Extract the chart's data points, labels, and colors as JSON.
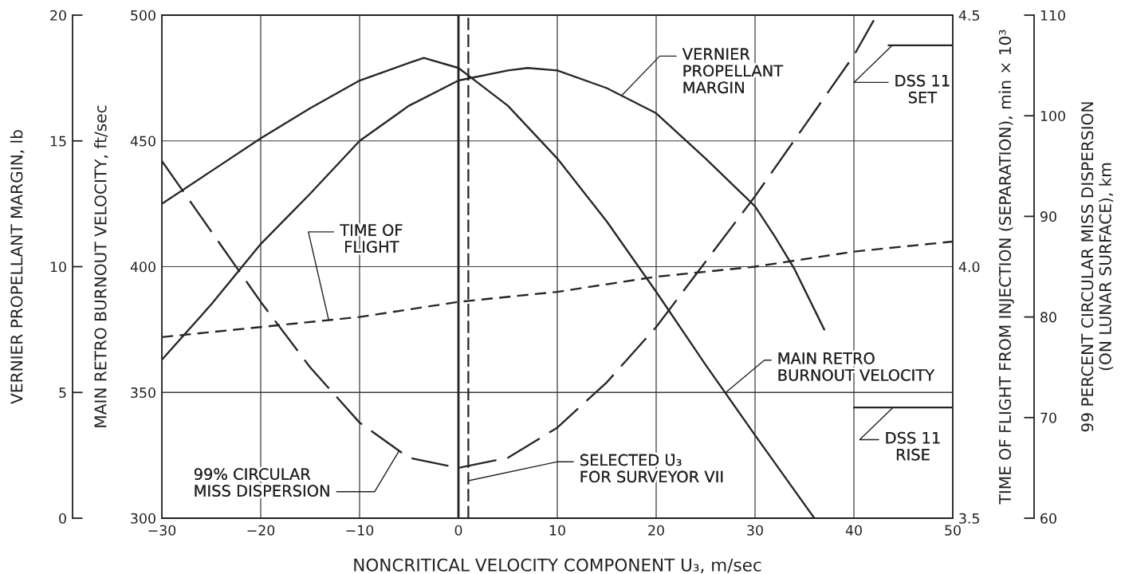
{
  "chart_data": [
    {
      "type": "line",
      "xlabel": "NONCRITICAL VELOCITY COMPONENT U₃, m/sec",
      "ylabel": "MAIN RETRO BURNOUT VELOCITY, ft/sec",
      "y2label": "TIME OF FLIGHT FROM INJECTION (SEPARATION), min × 10³",
      "y3label": "VERNIER PROPELLANT MARGIN, lb",
      "xlim": [
        -30,
        50
      ],
      "xticks": [
        -30,
        -20,
        -10,
        0,
        10,
        20,
        30,
        40,
        50
      ],
      "ylim": [
        300,
        500
      ],
      "yticks": [
        300,
        350,
        400,
        450,
        500
      ],
      "y2lim": [
        3.5,
        4.5
      ],
      "y2ticks": [
        3.5,
        {
          "value": 4,
          "label": "4.0"
        },
        4.5
      ],
      "y3lim": [
        0,
        20
      ],
      "y3ticks": [
        0,
        5,
        10,
        15,
        20
      ],
      "grid": true,
      "series": [
        {
          "name": "VERNIER\nPROPELLANT\nMARGIN",
          "axis": "y3",
          "color": "#262626",
          "line_style": "solid",
          "x": [
            -30,
            -25,
            -20,
            -15,
            -10,
            -5,
            0,
            5,
            7,
            10,
            15,
            20,
            25,
            30,
            32,
            34,
            36,
            37
          ],
          "values": [
            6.3,
            8.5,
            10.9,
            12.9,
            15.0,
            16.4,
            17.4,
            17.8,
            17.9,
            17.8,
            17.1,
            16.1,
            14.3,
            12.4,
            11.2,
            9.9,
            8.3,
            7.5
          ]
        },
        {
          "name": "MAIN RETRO\nBURNOUT VELOCITY",
          "color": "#262626",
          "line_style": "solid",
          "x": [
            -30,
            -25,
            -20,
            -15,
            -10,
            -5,
            -3.5,
            0,
            2,
            5,
            10,
            15,
            20,
            25,
            30,
            36
          ],
          "values": [
            425,
            438,
            451,
            463,
            474,
            481,
            483,
            479,
            473,
            464,
            443,
            418,
            390,
            361,
            333,
            300
          ]
        },
        {
          "name": "TIME OF\nFLIGHT",
          "axis": "y2",
          "color": "#262626",
          "line_style": "dashed",
          "x": [
            -30,
            -20,
            -10,
            0,
            10,
            20,
            30,
            40,
            50
          ],
          "values": [
            3.86,
            3.88,
            3.9,
            3.93,
            3.95,
            3.98,
            4.0,
            4.03,
            4.05
          ]
        },
        {
          "name": "DSS 11\nSET",
          "axis": "y2",
          "color": "#262626",
          "line_style": "solid",
          "x": [
            43.5,
            50
          ],
          "values": [
            4.44,
            4.44
          ]
        },
        {
          "name": "DSS 11\nRISE",
          "axis": "y2",
          "color": "#262626",
          "line_style": "solid",
          "x": [
            40,
            50
          ],
          "values": [
            3.72,
            3.72
          ]
        }
      ],
      "ref_lines": [
        {
          "axis": "x",
          "value": 0,
          "line_style": "solid",
          "color": "#222222"
        },
        {
          "axis": "x",
          "value": 1,
          "line_style": "dashed",
          "color": "#222222",
          "label": "SELECTED U̇₃\nFOR SURVEYOR VII"
        }
      ]
    },
    {
      "type": "line",
      "ylabel": "99 PERCENT CIRCULAR MISS DISPERSION\n(ON LUNAR SURFACE), km",
      "xlim": [
        -30,
        50
      ],
      "ylim": [
        60,
        110
      ],
      "yticks": [
        60,
        70,
        80,
        90,
        100,
        110
      ],
      "tick_labels": "y",
      "series": [
        {
          "name": "99% CIRCULAR\nMISS DISPERSION",
          "color": "#262626",
          "line_style": "dashed",
          "x": [
            -30,
            -25,
            -20,
            -15,
            -10,
            -5,
            0,
            5,
            10,
            15,
            20,
            25,
            30,
            35,
            40,
            42.3
          ],
          "values": [
            95.5,
            88.5,
            81.5,
            75,
            69.5,
            66,
            65,
            66,
            69,
            73.5,
            79,
            85.5,
            92,
            99,
            106,
            110
          ]
        }
      ]
    }
  ]
}
